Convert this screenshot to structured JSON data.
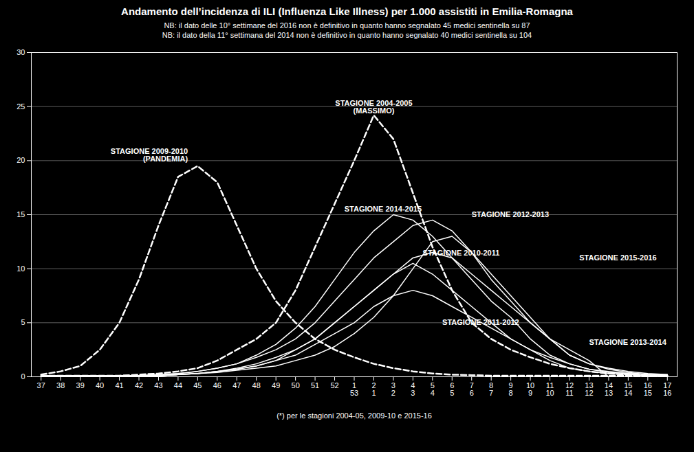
{
  "chart_data": {
    "type": "line",
    "title": "Andamento dell’incidenza di ILI (​Influenza Like Illness​) per 1.000 assistiti in Emilia-Romagna",
    "notes": [
      "NB: il dato delle 10° settimane del 2016 non è definitivo in quanto hanno segnalato 45 medici sentinella su 87",
      "NB: il dato della 11° settimana del 2014 non è definitivo in quanto hanno segnalato 40 medici sentinella su 104"
    ],
    "xlabel": "(*) per le stagioni 2004-05, 2009-10 e 2015-16",
    "categories": [
      "37",
      "38",
      "39",
      "40",
      "41",
      "42",
      "43",
      "44",
      "45",
      "46",
      "47",
      "48",
      "49",
      "50",
      "51",
      "52",
      "1",
      "2",
      "3",
      "4",
      "5",
      "6",
      "7",
      "8",
      "9",
      "10",
      "11",
      "12",
      "13",
      "14",
      "15",
      "16",
      "17"
    ],
    "categories2": [
      null,
      null,
      null,
      null,
      null,
      null,
      null,
      null,
      null,
      null,
      null,
      null,
      null,
      null,
      null,
      null,
      "53",
      "1",
      "2",
      "3",
      "4",
      "5",
      "6",
      "7",
      "8",
      "9",
      "10",
      "11",
      "12",
      "13",
      "14",
      "15",
      "16"
    ],
    "ylim": [
      0,
      30
    ],
    "yticks": [
      0,
      5,
      10,
      15,
      20,
      25,
      30
    ],
    "grid": true,
    "series": [
      {
        "name": "2004-2005",
        "color": "#ffffff",
        "line_style": "dashed",
        "values": [
          0.1,
          0.1,
          0.1,
          0.1,
          0.1,
          0.2,
          0.3,
          0.5,
          0.8,
          1.5,
          2.5,
          3.5,
          5.0,
          8.0,
          12.0,
          16.0,
          20.0,
          24.2,
          22.0,
          17.0,
          12.0,
          8.0,
          5.0,
          3.5,
          2.5,
          1.8,
          1.2,
          0.8,
          0.5,
          0.3,
          0.2,
          0.1,
          0.1
        ]
      },
      {
        "name": "2009-2010",
        "color": "#ffffff",
        "line_style": "dashed",
        "values": [
          0.2,
          0.5,
          1.0,
          2.5,
          5.0,
          9.0,
          14.0,
          18.5,
          19.5,
          18.0,
          14.0,
          10.0,
          7.0,
          5.0,
          3.5,
          2.5,
          1.8,
          1.2,
          0.8,
          0.5,
          0.3,
          0.2,
          0.15,
          0.1,
          0.1,
          0.1,
          0.1,
          0.1,
          0.1,
          0.1,
          0.1,
          0.1,
          0.1
        ]
      },
      {
        "name": "2010-2011",
        "color": "#ffffff",
        "line_style": "solid",
        "values": [
          0.1,
          0.1,
          0.1,
          0.1,
          0.1,
          0.1,
          0.1,
          0.2,
          0.3,
          0.4,
          0.6,
          0.8,
          1.0,
          1.5,
          2.0,
          2.8,
          4.0,
          5.5,
          7.5,
          10.0,
          12.5,
          13.0,
          11.5,
          9.5,
          7.5,
          5.5,
          3.5,
          2.0,
          1.2,
          0.8,
          0.5,
          0.3,
          0.2
        ]
      },
      {
        "name": "2011-2012",
        "color": "#ffffff",
        "line_style": "solid",
        "values": [
          0.1,
          0.1,
          0.1,
          0.1,
          0.1,
          0.1,
          0.1,
          0.2,
          0.3,
          0.5,
          0.7,
          1.0,
          1.5,
          2.5,
          3.5,
          5.0,
          6.5,
          8.0,
          9.5,
          10.5,
          9.5,
          8.0,
          6.5,
          5.0,
          3.5,
          2.5,
          1.5,
          0.8,
          0.5,
          0.3,
          0.2,
          0.1,
          0.1
        ]
      },
      {
        "name": "2012-2013",
        "color": "#ffffff",
        "line_style": "solid",
        "values": [
          0.1,
          0.1,
          0.1,
          0.1,
          0.1,
          0.1,
          0.2,
          0.3,
          0.5,
          0.8,
          1.2,
          1.8,
          2.5,
          3.5,
          5.0,
          7.0,
          9.0,
          11.0,
          12.5,
          14.0,
          14.5,
          13.5,
          11.5,
          9.0,
          7.0,
          5.0,
          3.5,
          2.0,
          1.2,
          0.7,
          0.4,
          0.2,
          0.1
        ]
      },
      {
        "name": "2013-2014",
        "color": "#ffffff",
        "line_style": "solid",
        "values": [
          0.1,
          0.1,
          0.1,
          0.1,
          0.1,
          0.1,
          0.1,
          0.2,
          0.3,
          0.5,
          0.7,
          1.0,
          1.5,
          2.0,
          3.0,
          4.0,
          5.0,
          6.5,
          7.5,
          8.0,
          7.5,
          6.5,
          5.5,
          4.5,
          3.5,
          2.5,
          1.8,
          1.2,
          0.7,
          0.5,
          0.3,
          0.2,
          0.2
        ]
      },
      {
        "name": "2014-2015",
        "color": "#ffffff",
        "line_style": "solid",
        "values": [
          0.1,
          0.1,
          0.1,
          0.1,
          0.1,
          0.1,
          0.2,
          0.3,
          0.5,
          0.8,
          1.2,
          2.0,
          3.0,
          4.5,
          6.5,
          9.0,
          11.5,
          13.5,
          15.0,
          14.5,
          13.0,
          11.0,
          9.0,
          7.0,
          5.5,
          3.5,
          2.0,
          1.2,
          0.7,
          0.4,
          0.3,
          0.2,
          0.1
        ]
      },
      {
        "name": "2015-2016",
        "color": "#ffffff",
        "line_style": "solid",
        "values": [
          0.1,
          0.1,
          0.1,
          0.1,
          0.1,
          0.1,
          0.1,
          0.2,
          0.3,
          0.5,
          0.8,
          1.2,
          1.8,
          2.5,
          3.5,
          5.0,
          6.5,
          8.0,
          9.5,
          11.0,
          11.5,
          11.0,
          9.5,
          8.0,
          6.5,
          5.0,
          3.5,
          2.5,
          1.5,
          0.0,
          0.0,
          0.0,
          0.0
        ]
      }
    ],
    "annotations": [
      {
        "text": "STAGIONE 2004-2005\n(MASSIMO)",
        "x": 17,
        "y": 24.4
      },
      {
        "text": "STAGIONE 2009-2010\n(PANDEMIA)",
        "x": 7.5,
        "y": 20.5
      },
      {
        "text": "STAGIONE 2014-2015",
        "x": 15.5,
        "y": 15.3
      },
      {
        "text": "STAGIONE 2012-2013",
        "x": 22,
        "y": 14.8
      },
      {
        "text": "STAGIONE 2010-2011",
        "x": 19.5,
        "y": 11.2
      },
      {
        "text": "STAGIONE 2015-2016",
        "x": 27.5,
        "y": 11.0
      },
      {
        "text": "STAGIONE 2011-2012",
        "x": 20.5,
        "y": 4.8
      },
      {
        "text": "STAGIONE 2013-2014",
        "x": 28.0,
        "y": 3.2
      }
    ]
  }
}
